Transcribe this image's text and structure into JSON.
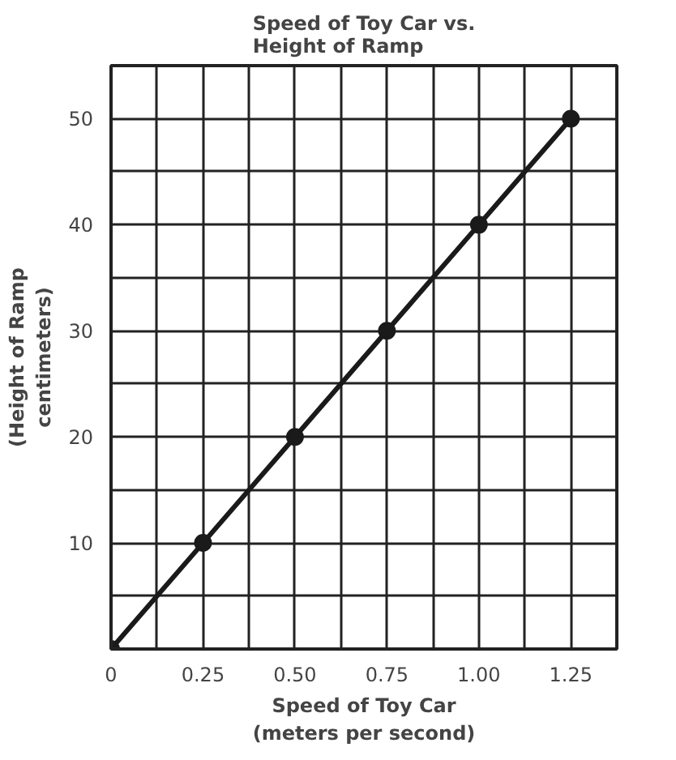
{
  "chart_data": {
    "type": "line",
    "title": "Speed of Toy Car vs.\nHeight of Ramp",
    "xlabel": "Speed of Toy Car\n(meters per second)",
    "ylabel": "(Height of Ramp\ncentimeters)",
    "x": [
      0,
      0.25,
      0.5,
      0.75,
      1.0,
      1.25
    ],
    "series": [
      {
        "color": "#1a1a1a",
        "values": [
          0,
          10,
          20,
          30,
          40,
          50
        ]
      }
    ],
    "xlim": [
      0,
      1.375
    ],
    "ylim": [
      0,
      55
    ],
    "xticks": [
      0,
      {
        "value": 0.125,
        "label": null
      },
      0.25,
      {
        "value": 0.375,
        "label": null
      },
      {
        "value": 0.5,
        "label": "0.50"
      },
      {
        "value": 0.625,
        "label": null
      },
      {
        "value": 0.75,
        "label": "0.75"
      },
      {
        "value": 0.875,
        "label": null
      },
      {
        "value": 1.0,
        "label": "1.00"
      },
      {
        "value": 1.125,
        "label": null
      },
      1.25,
      {
        "value": 1.375,
        "label": null
      }
    ],
    "yticks": [
      {
        "value": 0,
        "label": null
      },
      {
        "value": 5,
        "label": null
      },
      10,
      {
        "value": 15,
        "label": null
      },
      20,
      {
        "value": 25,
        "label": null
      },
      30,
      {
        "value": 35,
        "label": null
      },
      40,
      {
        "value": 45,
        "label": null
      },
      50,
      {
        "value": 55,
        "label": null
      }
    ],
    "grid": true,
    "marker": "circle",
    "line_style": "solid"
  }
}
